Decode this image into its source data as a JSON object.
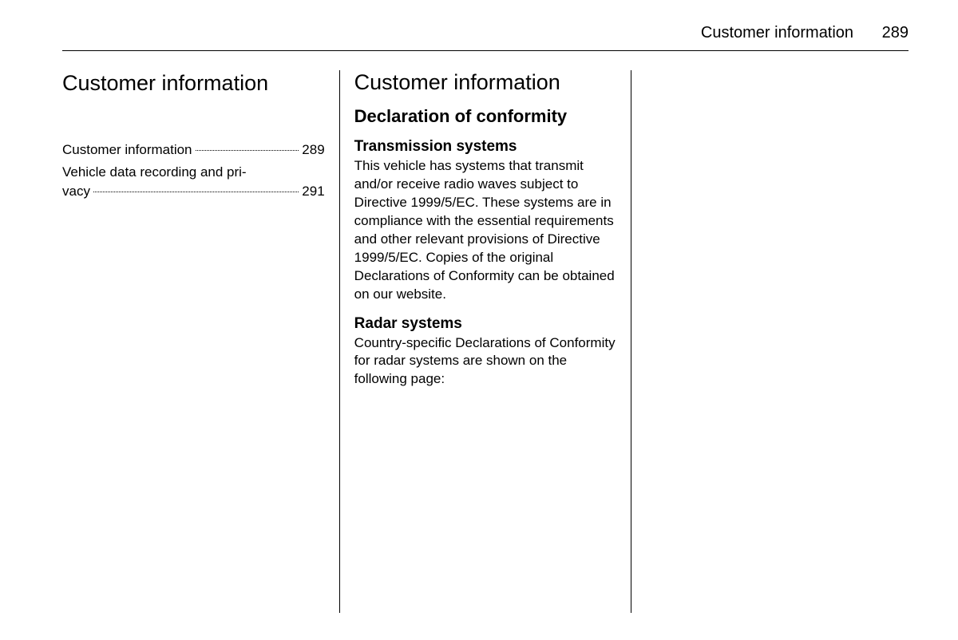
{
  "header": {
    "title": "Customer information",
    "page_number": "289"
  },
  "column1": {
    "chapter_title": "Customer information",
    "toc": {
      "entry1": {
        "text": "Customer information",
        "page": "289"
      },
      "entry2": {
        "line1": "Vehicle data recording and pri‐",
        "line2_text": "vacy",
        "page": "291"
      }
    }
  },
  "column2": {
    "section_title": "Customer information",
    "subsection_title": "Declaration of conformity",
    "block1": {
      "heading": "Transmission systems",
      "text": "This vehicle has systems that transmit and/or receive radio waves subject to Directive 1999/5/EC. These systems are in compliance with the essential requirements and other relevant provisions of Directive 1999/5/EC. Copies of the original Declarations of Conformity can be obtained on our website."
    },
    "block2": {
      "heading": "Radar systems",
      "text": "Country-specific Declarations of Conformity for radar systems are shown on the following page:"
    }
  },
  "colors": {
    "text": "#000000",
    "background": "#ffffff",
    "divider": "#000000"
  },
  "typography": {
    "body_fontsize": 17,
    "heading_fontsize": 19,
    "subsection_fontsize": 22,
    "section_fontsize": 27,
    "header_fontsize": 20
  }
}
